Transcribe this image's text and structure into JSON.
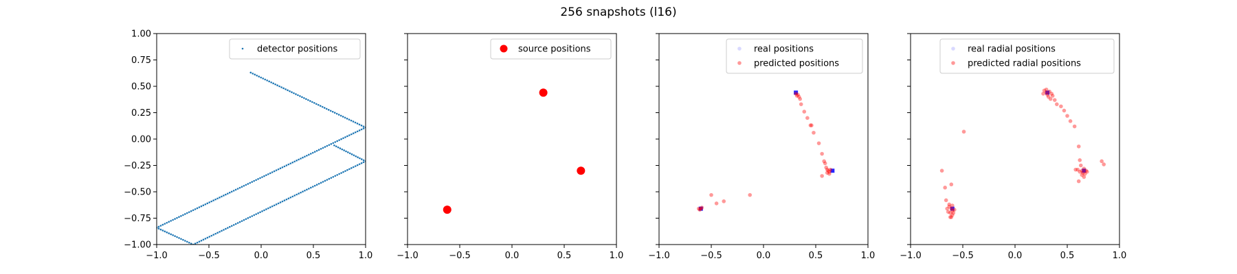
{
  "figure": {
    "title": "256 snapshots (l16)"
  },
  "colors": {
    "detector": "#1f77b4",
    "source": "#ff0000",
    "real": "#0000ff",
    "predicted": "#ff0000",
    "axis": "#000000"
  },
  "chart_data": [
    {
      "type": "scatter",
      "title": "",
      "xlabel": "",
      "ylabel": "",
      "xlim": [
        -1,
        1
      ],
      "ylim": [
        -1,
        1
      ],
      "xticks": [
        "−1.0",
        "−0.5",
        "0.0",
        "0.5",
        "1.0"
      ],
      "yticks": [
        "1.00",
        "0.75",
        "0.50",
        "0.25",
        "0.00",
        "−0.25",
        "−0.50",
        "−0.75",
        "−1.00"
      ],
      "show_yticklabels": true,
      "legend_position": "top-right",
      "series": [
        {
          "name": "detector positions",
          "marker": "dot-small",
          "color": "#1f77b4",
          "polyline": [
            [
              -0.1,
              0.63
            ],
            [
              1.0,
              0.11
            ],
            [
              -1.0,
              -0.84
            ],
            [
              -0.65,
              -1.0
            ],
            [
              1.0,
              -0.21
            ],
            [
              0.7,
              -0.06
            ]
          ],
          "points_per_polyline": 256
        }
      ]
    },
    {
      "type": "scatter",
      "title": "",
      "xlabel": "",
      "ylabel": "",
      "xlim": [
        -1,
        1
      ],
      "ylim": [
        -1,
        1
      ],
      "xticks": [
        "−1.0",
        "−0.5",
        "0.0",
        "0.5",
        "1.0"
      ],
      "yticks": [],
      "show_yticklabels": false,
      "legend_position": "top-right",
      "series": [
        {
          "name": "source positions",
          "marker": "dot-large",
          "color": "#ff0000",
          "points": [
            [
              0.3,
              0.44
            ],
            [
              0.66,
              -0.3
            ],
            [
              -0.62,
              -0.67
            ]
          ]
        }
      ]
    },
    {
      "type": "scatter",
      "title": "",
      "xlabel": "",
      "ylabel": "",
      "xlim": [
        -1,
        1
      ],
      "ylim": [
        -1,
        1
      ],
      "xticks": [
        "−1.0",
        "−0.5",
        "0.0",
        "0.5",
        "1.0"
      ],
      "yticks": [],
      "show_yticklabels": false,
      "legend_position": "top-right",
      "series": [
        {
          "name": "real positions",
          "marker": "square",
          "color": "#0000ff",
          "points": [
            [
              0.31,
              0.44
            ],
            [
              0.66,
              -0.3
            ],
            [
              -0.6,
              -0.66
            ]
          ]
        },
        {
          "name": "predicted positions",
          "marker": "dot",
          "color": "#ff0000",
          "points": [
            [
              0.31,
              0.43
            ],
            [
              0.32,
              0.41
            ],
            [
              0.33,
              0.42
            ],
            [
              0.34,
              0.4
            ],
            [
              0.35,
              0.38
            ],
            [
              0.36,
              0.33
            ],
            [
              0.39,
              0.26
            ],
            [
              0.42,
              0.2
            ],
            [
              0.45,
              0.13
            ],
            [
              0.46,
              0.13
            ],
            [
              0.48,
              0.06
            ],
            [
              0.53,
              -0.04
            ],
            [
              0.56,
              -0.14
            ],
            [
              0.58,
              -0.21
            ],
            [
              0.59,
              -0.23
            ],
            [
              0.6,
              -0.27
            ],
            [
              0.61,
              -0.29
            ],
            [
              0.62,
              -0.3
            ],
            [
              0.63,
              -0.31
            ],
            [
              0.64,
              -0.29
            ],
            [
              0.61,
              -0.32
            ],
            [
              0.56,
              -0.35
            ],
            [
              0.63,
              -0.33
            ],
            [
              -0.6,
              -0.66
            ],
            [
              -0.61,
              -0.67
            ],
            [
              -0.59,
              -0.65
            ],
            [
              -0.62,
              -0.66
            ],
            [
              -0.5,
              -0.53
            ],
            [
              -0.45,
              -0.61
            ],
            [
              -0.38,
              -0.59
            ],
            [
              -0.13,
              -0.53
            ]
          ]
        }
      ]
    },
    {
      "type": "scatter",
      "title": "",
      "xlabel": "",
      "ylabel": "",
      "xlim": [
        -1,
        1
      ],
      "ylim": [
        -1,
        1
      ],
      "xticks": [
        "−1.0",
        "−0.5",
        "0.0",
        "0.5",
        "1.0"
      ],
      "yticks": [],
      "show_yticklabels": false,
      "legend_position": "top-right",
      "series": [
        {
          "name": "real radial positions",
          "marker": "square",
          "color": "#0000ff",
          "points": [
            [
              0.31,
              0.44
            ],
            [
              0.66,
              -0.3
            ],
            [
              -0.6,
              -0.66
            ]
          ]
        },
        {
          "name": "predicted radial positions",
          "marker": "dot",
          "color": "#ff0000",
          "points": [
            [
              0.28,
              0.46
            ],
            [
              0.3,
              0.44
            ],
            [
              0.31,
              0.42
            ],
            [
              0.33,
              0.45
            ],
            [
              0.35,
              0.43
            ],
            [
              0.32,
              0.4
            ],
            [
              0.36,
              0.41
            ],
            [
              0.34,
              0.38
            ],
            [
              0.38,
              0.37
            ],
            [
              0.3,
              0.47
            ],
            [
              0.27,
              0.43
            ],
            [
              0.4,
              0.33
            ],
            [
              0.44,
              0.31
            ],
            [
              0.47,
              0.27
            ],
            [
              0.5,
              0.22
            ],
            [
              0.53,
              0.17
            ],
            [
              0.57,
              0.12
            ],
            [
              0.61,
              -0.07
            ],
            [
              0.62,
              -0.2
            ],
            [
              0.63,
              -0.25
            ],
            [
              0.64,
              -0.3
            ],
            [
              0.66,
              -0.28
            ],
            [
              0.67,
              -0.33
            ],
            [
              0.65,
              -0.32
            ],
            [
              0.62,
              -0.31
            ],
            [
              0.68,
              -0.3
            ],
            [
              0.6,
              -0.29
            ],
            [
              0.66,
              -0.36
            ],
            [
              0.64,
              -0.34
            ],
            [
              0.69,
              -0.31
            ],
            [
              0.61,
              -0.4
            ],
            [
              0.58,
              -0.29
            ],
            [
              0.83,
              -0.21
            ],
            [
              0.85,
              -0.24
            ],
            [
              -0.61,
              -0.66
            ],
            [
              -0.63,
              -0.64
            ],
            [
              -0.6,
              -0.68
            ],
            [
              -0.64,
              -0.69
            ],
            [
              -0.6,
              -0.72
            ],
            [
              -0.62,
              -0.7
            ],
            [
              -0.65,
              -0.66
            ],
            [
              -0.58,
              -0.67
            ],
            [
              -0.61,
              -0.74
            ],
            [
              -0.63,
              -0.62
            ],
            [
              -0.66,
              -0.58
            ],
            [
              -0.59,
              -0.7
            ],
            [
              -0.6,
              -0.63
            ],
            [
              -0.62,
              -0.74
            ],
            [
              -0.7,
              -0.3
            ],
            [
              -0.67,
              -0.46
            ],
            [
              -0.61,
              -0.43
            ],
            [
              -0.49,
              0.07
            ]
          ]
        }
      ]
    }
  ]
}
